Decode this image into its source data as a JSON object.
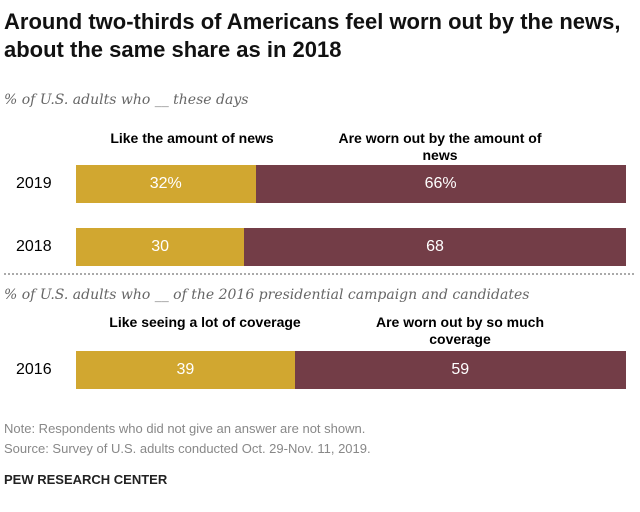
{
  "chart_data": {
    "type": "bar",
    "stacked": true,
    "orientation": "horizontal",
    "title": "Around two-thirds of Americans feel worn out by the news, about the same share as in 2018",
    "panels": [
      {
        "subtitle": "% of U.S. adults who __ these days",
        "series_labels": [
          "Like the amount of news",
          "Are worn out by the amount of news"
        ],
        "categories": [
          "2019",
          "2018"
        ],
        "series": [
          {
            "name": "Like the amount of news",
            "values": [
              32,
              30
            ],
            "labels": [
              "32%",
              "30"
            ]
          },
          {
            "name": "Are worn out by the amount of news",
            "values": [
              66,
              68
            ],
            "labels": [
              "66%",
              "68"
            ]
          }
        ]
      },
      {
        "subtitle": "% of U.S. adults who __ of the 2016 presidential campaign and candidates",
        "series_labels": [
          "Like seeing a lot of coverage",
          "Are worn out by so much coverage"
        ],
        "categories": [
          "2016"
        ],
        "series": [
          {
            "name": "Like seeing a lot of coverage",
            "values": [
              39
            ],
            "labels": [
              "39"
            ]
          },
          {
            "name": "Are worn out by so much coverage",
            "values": [
              59
            ],
            "labels": [
              "59"
            ]
          }
        ]
      }
    ],
    "colors": [
      "#D1A730",
      "#733D47"
    ],
    "note": "Note: Respondents who did not give an answer are not shown.",
    "source": "Source: Survey of U.S. adults conducted Oct. 29-Nov. 11, 2019.",
    "brand": "PEW RESEARCH CENTER"
  }
}
